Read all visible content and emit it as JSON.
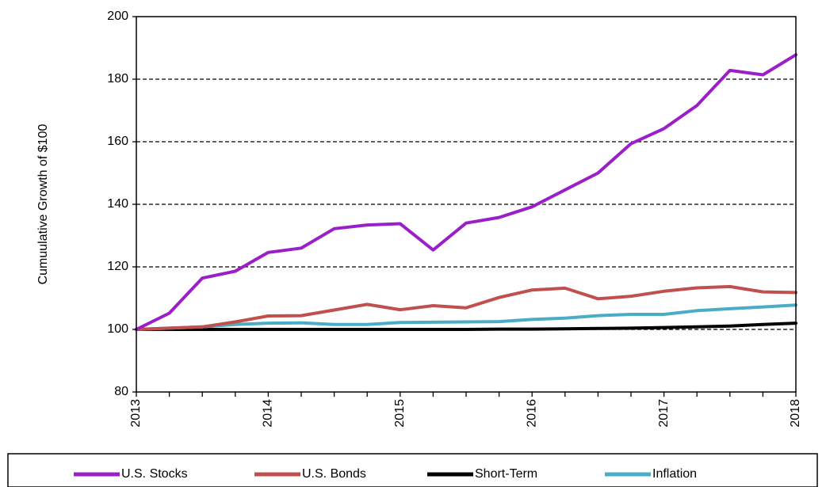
{
  "chart_data": {
    "type": "line",
    "title": "",
    "xlabel": "",
    "ylabel": "Cumuulative Growth of $100",
    "xlim": [
      2013,
      2018
    ],
    "ylim": [
      80,
      200
    ],
    "x_ticks": [
      "2013",
      "2014",
      "2015",
      "2016",
      "2017",
      "2018"
    ],
    "y_ticks": [
      "80",
      "100",
      "120",
      "140",
      "160",
      "180",
      "200"
    ],
    "grid": "horizontal-dashed",
    "legend": "bottom",
    "x": [
      2013.0,
      2013.25,
      2013.5,
      2013.75,
      2014.0,
      2014.25,
      2014.5,
      2014.75,
      2015.0,
      2015.25,
      2015.5,
      2015.75,
      2016.0,
      2016.25,
      2016.5,
      2016.75,
      2017.0,
      2017.25,
      2017.5,
      2017.75,
      2018.0
    ],
    "series": [
      {
        "name": "U.S. Stocks",
        "color": "#9b1fc9",
        "values": [
          100,
          105.2,
          116.4,
          118.6,
          124.6,
          126.0,
          132.2,
          133.4,
          133.8,
          125.4,
          134.0,
          135.8,
          139.2,
          144.6,
          150.0,
          159.4,
          164.2,
          171.6,
          182.8,
          181.4,
          187.8
        ]
      },
      {
        "name": "U.S. Bonds",
        "color": "#c0504d",
        "values": [
          100,
          100.4,
          100.8,
          102.4,
          104.3,
          104.4,
          106.2,
          108.0,
          106.3,
          107.6,
          106.9,
          110.2,
          112.6,
          113.2,
          109.8,
          110.6,
          112.2,
          113.3,
          113.7,
          112.0,
          111.8
        ]
      },
      {
        "name": "Short-Term",
        "color": "#000000",
        "values": [
          100,
          100.0,
          100.0,
          100.0,
          100.0,
          100.0,
          100.0,
          100.0,
          100.0,
          100.0,
          100.0,
          100.1,
          100.1,
          100.2,
          100.3,
          100.4,
          100.6,
          100.8,
          101.1,
          101.6,
          102.0
        ]
      },
      {
        "name": "Inflation",
        "color": "#4bacc6",
        "values": [
          100,
          100.4,
          100.8,
          101.6,
          102.0,
          102.1,
          101.6,
          101.6,
          102.2,
          102.3,
          102.4,
          102.5,
          103.2,
          103.6,
          104.4,
          104.8,
          104.8,
          106.0,
          106.6,
          107.2,
          107.8
        ]
      }
    ]
  }
}
